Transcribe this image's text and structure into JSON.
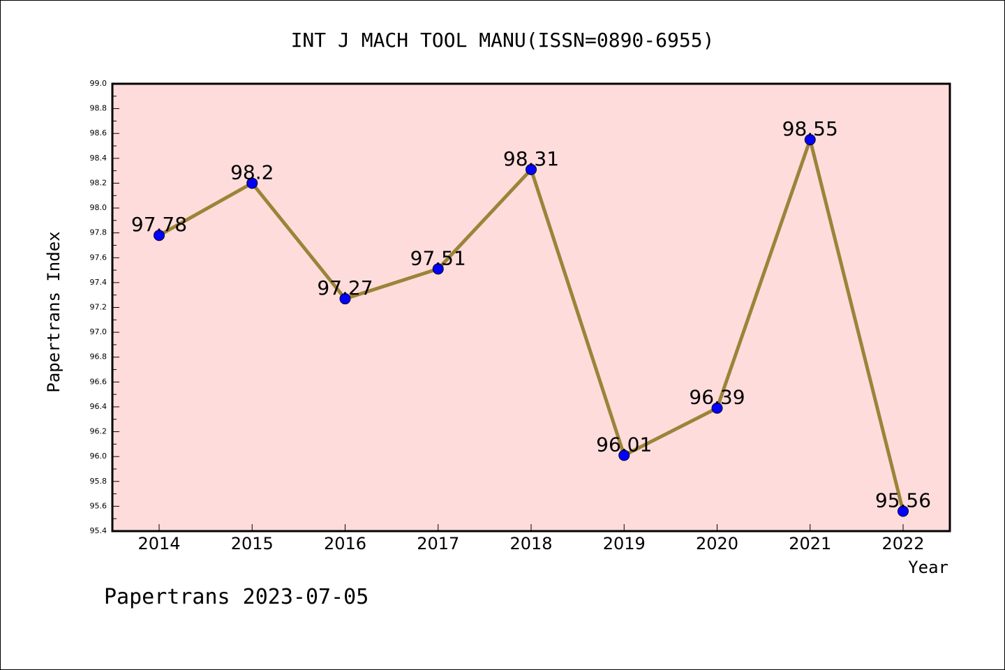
{
  "chart_data": {
    "type": "line",
    "title": "INT J MACH TOOL MANU(ISSN=0890-6955)",
    "xlabel": "Year",
    "ylabel": "Papertrans Index",
    "categories": [
      "2014",
      "2015",
      "2016",
      "2017",
      "2018",
      "2019",
      "2020",
      "2021",
      "2022"
    ],
    "values": [
      97.78,
      98.2,
      97.27,
      97.51,
      98.31,
      96.01,
      96.39,
      98.55,
      95.56
    ],
    "data_labels": [
      "97.78",
      "98.2",
      "97.27",
      "97.51",
      "98.31",
      "96.01",
      "96.39",
      "98.55",
      "95.56"
    ],
    "ylim": [
      95.4,
      99.0
    ],
    "yticks": [
      "95.4",
      "95.6",
      "95.8",
      "96.0",
      "96.2",
      "96.4",
      "96.6",
      "96.8",
      "97.0",
      "97.2",
      "97.4",
      "97.6",
      "97.8",
      "98.0",
      "98.2",
      "98.4",
      "98.6",
      "98.8",
      "99.0"
    ],
    "grid": false,
    "colors": {
      "plot_background": "#ffdcdc",
      "line": "#9b8439",
      "marker": "#0000ff"
    }
  },
  "footer": "Papertrans 2023-07-05"
}
